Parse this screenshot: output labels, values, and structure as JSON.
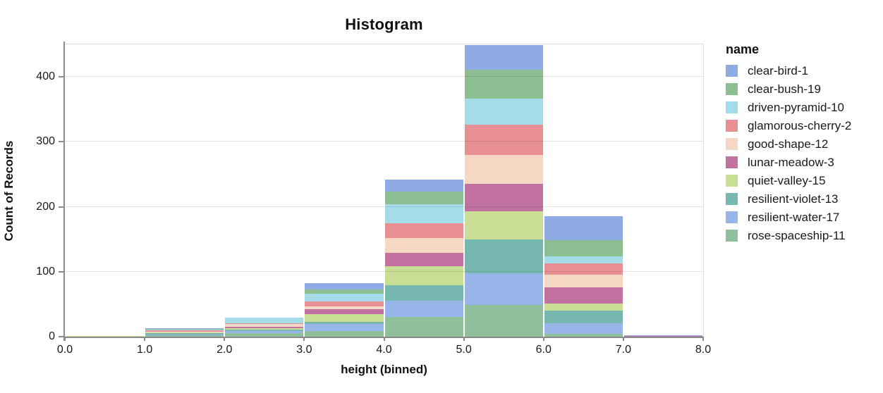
{
  "chart": {
    "title": "Histogram",
    "xlabel": "height (binned)",
    "ylabel": "Count of Records",
    "legend_title": "name"
  },
  "chart_data": {
    "type": "bar",
    "subtype": "stacked-histogram",
    "title": "Histogram",
    "xlabel": "height (binned)",
    "ylabel": "Count of Records",
    "legend_title": "name",
    "legend_position": "right",
    "grid": "horizontal",
    "xlim": [
      0,
      8
    ],
    "ylim": [
      0,
      450
    ],
    "x_bin_edges": [
      0,
      1,
      2,
      3,
      4,
      5,
      6,
      7,
      8
    ],
    "x_tick_labels": [
      "0.0",
      "1.0",
      "2.0",
      "3.0",
      "4.0",
      "5.0",
      "6.0",
      "7.0",
      "8.0"
    ],
    "y_ticks": [
      0,
      100,
      200,
      300,
      400
    ],
    "bin_totals": [
      1,
      13,
      29,
      82,
      242,
      449,
      185,
      2
    ],
    "series": [
      {
        "name": "clear-bird-1",
        "color": "#8fabe4",
        "values": [
          0,
          1,
          0,
          9,
          19,
          38,
          36,
          1
        ]
      },
      {
        "name": "clear-bush-19",
        "color": "#8dbe91",
        "values": [
          0,
          1,
          0,
          7,
          19,
          44,
          25,
          0
        ]
      },
      {
        "name": "driven-pyramid-10",
        "color": "#a4dcea",
        "values": [
          0,
          1,
          8,
          12,
          29,
          41,
          11,
          0
        ]
      },
      {
        "name": "glamorous-cherry-2",
        "color": "#e88f93",
        "values": [
          0,
          2,
          2,
          7,
          23,
          46,
          17,
          0
        ]
      },
      {
        "name": "good-shape-12",
        "color": "#f5d7c3",
        "values": [
          0,
          1,
          4,
          5,
          23,
          45,
          20,
          0
        ]
      },
      {
        "name": "lunar-meadow-3",
        "color": "#c172a0",
        "values": [
          0,
          1,
          2,
          7,
          21,
          42,
          25,
          1
        ]
      },
      {
        "name": "quiet-valley-15",
        "color": "#c9dd95",
        "values": [
          1,
          1,
          2,
          12,
          29,
          43,
          11,
          0
        ]
      },
      {
        "name": "resilient-violet-13",
        "color": "#76b8af",
        "values": [
          0,
          2,
          2,
          4,
          24,
          52,
          19,
          0
        ]
      },
      {
        "name": "resilient-water-17",
        "color": "#97b5e8",
        "values": [
          0,
          1,
          4,
          10,
          25,
          49,
          17,
          0
        ]
      },
      {
        "name": "rose-spaceship-11",
        "color": "#8ec19b",
        "values": [
          0,
          2,
          5,
          9,
          30,
          49,
          4,
          0
        ]
      }
    ]
  }
}
